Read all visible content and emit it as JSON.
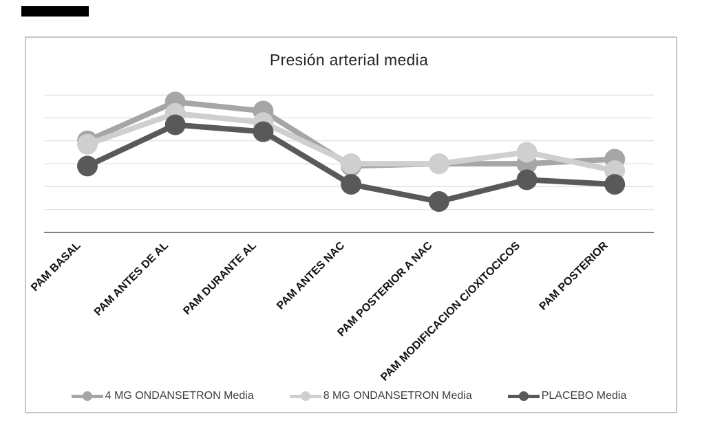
{
  "chart_data": {
    "type": "line",
    "title": "Presión arterial media",
    "categories": [
      "PAM BASAL",
      "PAM ANTES DE AL",
      "PAM DURANTE AL",
      "PAM ANTES NAC",
      "PAM POSTERIOR A NAC",
      "PAM MODIFICACION C/OXITOCICOS",
      "PAM POSTERIOR"
    ],
    "series": [
      {
        "name": "4 MG ONDANSETRON Media",
        "color": "#a6a6a6",
        "values": [
          4.0,
          5.7,
          5.3,
          2.9,
          3.0,
          3.0,
          3.2
        ]
      },
      {
        "name": "8 MG ONDANSETRON Media",
        "color": "#d0cece",
        "values": [
          3.85,
          5.2,
          4.8,
          3.0,
          3.0,
          3.5,
          2.7
        ]
      },
      {
        "name": "PLACEBO Media",
        "color": "#595959",
        "values": [
          2.9,
          4.7,
          4.4,
          2.1,
          1.35,
          2.3,
          2.1
        ]
      }
    ],
    "y_axis": {
      "tick_labels_visible": false,
      "gridline_count": 6,
      "units": "unlabeled axis - values estimated in gridline units (1.0 per gridline above baseline)",
      "ylim": [
        0,
        6.5
      ]
    },
    "x_axis": {
      "label_rotation_deg": 45
    },
    "legend": {
      "position": "bottom"
    },
    "grid": true,
    "marker_style": "filled-circle",
    "colors": {
      "gridline": "#d9d9d9",
      "axis_line": "#808080",
      "frame_border": "#c6c6c6"
    }
  }
}
